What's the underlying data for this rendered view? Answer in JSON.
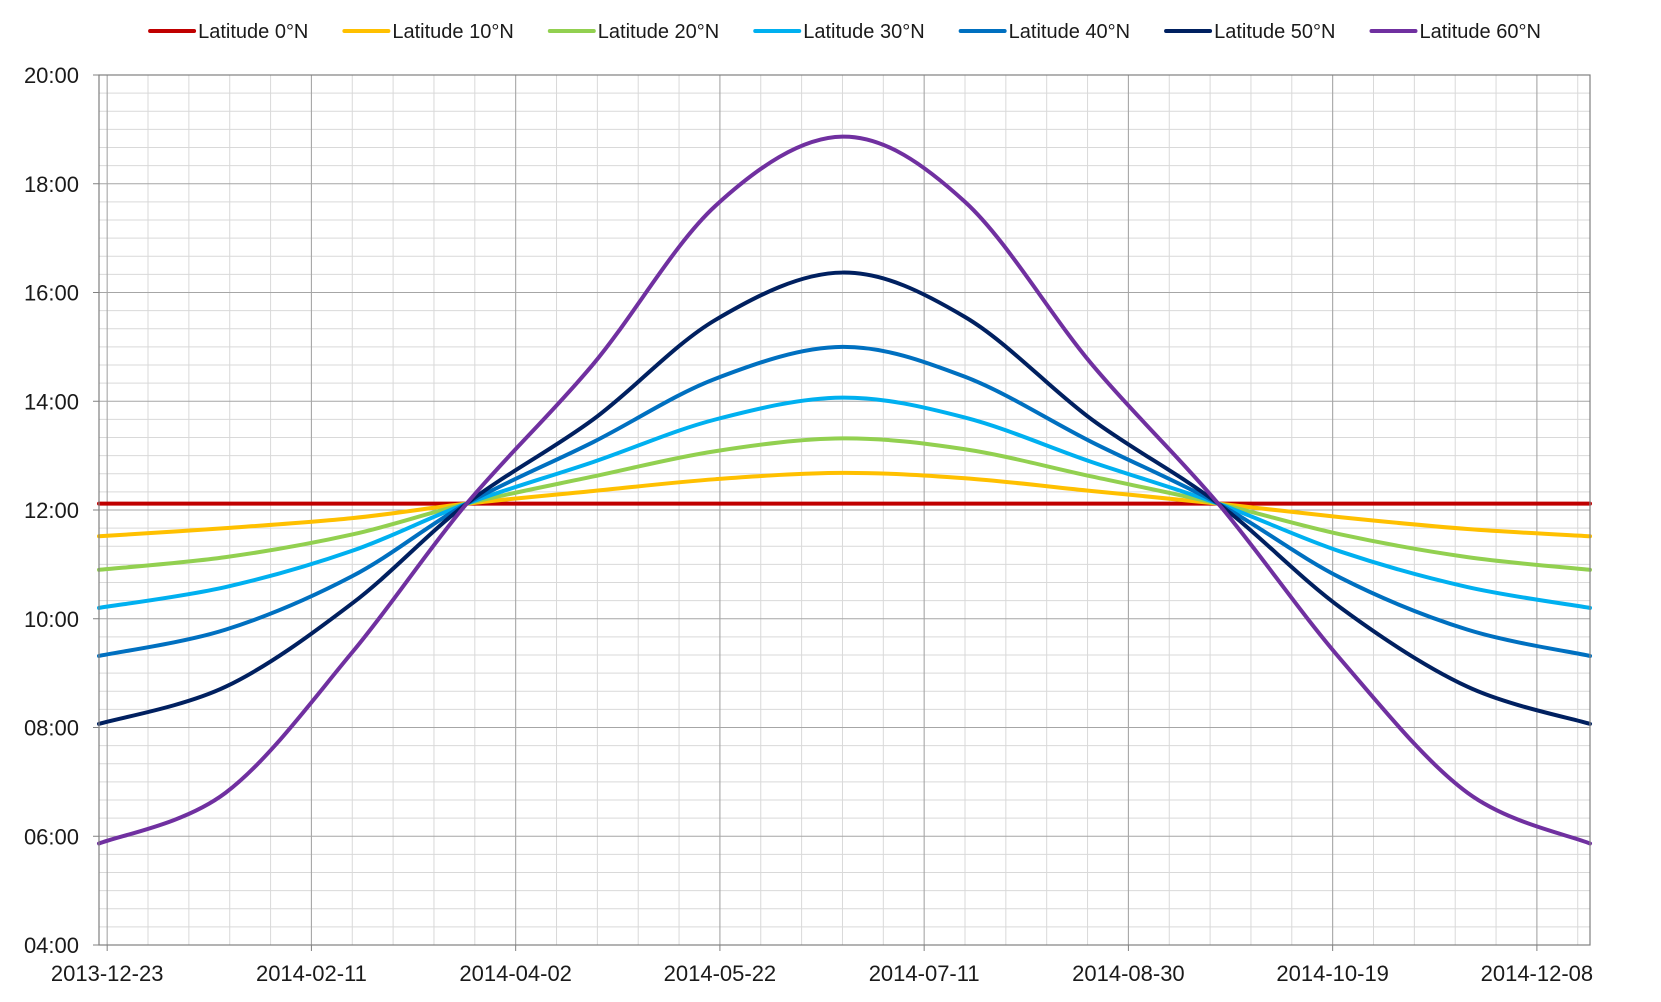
{
  "chart_data": {
    "type": "line",
    "title": "",
    "xlabel": "",
    "ylabel": "",
    "legend_position": "top",
    "grid": true,
    "x_range": [
      "2013-12-21",
      "2014-12-21"
    ],
    "y_range": [
      "04:00",
      "20:00"
    ],
    "x_ticks": [
      "2013-12-23",
      "2014-02-11",
      "2014-04-02",
      "2014-05-22",
      "2014-07-11",
      "2014-08-30",
      "2014-10-19",
      "2014-12-08"
    ],
    "y_ticks": [
      "04:00",
      "06:00",
      "08:00",
      "10:00",
      "12:00",
      "14:00",
      "16:00",
      "18:00",
      "20:00"
    ],
    "x": [
      "2013-12-21",
      "2014-01-21",
      "2014-02-21",
      "2014-03-21",
      "2014-04-21",
      "2014-05-21",
      "2014-06-21",
      "2014-07-21",
      "2014-08-21",
      "2014-09-21",
      "2014-10-21",
      "2014-11-21",
      "2014-12-21"
    ],
    "series": [
      {
        "name": "Latitude 0°N",
        "color": "#c00000",
        "values": [
          "12:07",
          "12:07",
          "12:07",
          "12:07",
          "12:07",
          "12:07",
          "12:07",
          "12:07",
          "12:07",
          "12:07",
          "12:07",
          "12:07",
          "12:07"
        ]
      },
      {
        "name": "Latitude 10°N",
        "color": "#ffc000",
        "values": [
          "11:31",
          "11:40",
          "11:51",
          "12:07",
          "12:21",
          "12:34",
          "12:41",
          "12:35",
          "12:21",
          "12:07",
          "11:52",
          "11:39",
          "11:31"
        ]
      },
      {
        "name": "Latitude 20°N",
        "color": "#92d050",
        "values": [
          "10:54",
          "11:08",
          "11:33",
          "12:07",
          "12:37",
          "13:05",
          "13:19",
          "13:07",
          "12:37",
          "12:07",
          "11:33",
          "11:08",
          "10:54"
        ]
      },
      {
        "name": "Latitude 30°N",
        "color": "#00b0f0",
        "values": [
          "10:12",
          "10:35",
          "11:15",
          "12:07",
          "12:53",
          "13:40",
          "14:04",
          "13:42",
          "12:53",
          "12:07",
          "11:14",
          "10:35",
          "10:12"
        ]
      },
      {
        "name": "Latitude 40°N",
        "color": "#0070c0",
        "values": [
          "09:19",
          "09:48",
          "10:47",
          "12:07",
          "13:15",
          "14:25",
          "15:00",
          "14:27",
          "13:15",
          "12:07",
          "10:45",
          "09:48",
          "09:19"
        ]
      },
      {
        "name": "Latitude 50°N",
        "color": "#002060",
        "values": [
          "08:04",
          "08:45",
          "10:17",
          "12:07",
          "13:40",
          "15:30",
          "16:22",
          "15:33",
          "13:40",
          "12:07",
          "10:12",
          "08:45",
          "08:04"
        ]
      },
      {
        "name": "Latitude 60°N",
        "color": "#7030a0",
        "values": [
          "05:52",
          "06:48",
          "09:23",
          "12:07",
          "14:41",
          "17:36",
          "18:52",
          "17:40",
          "14:41",
          "12:07",
          "09:15",
          "06:48",
          "05:52"
        ]
      }
    ]
  }
}
